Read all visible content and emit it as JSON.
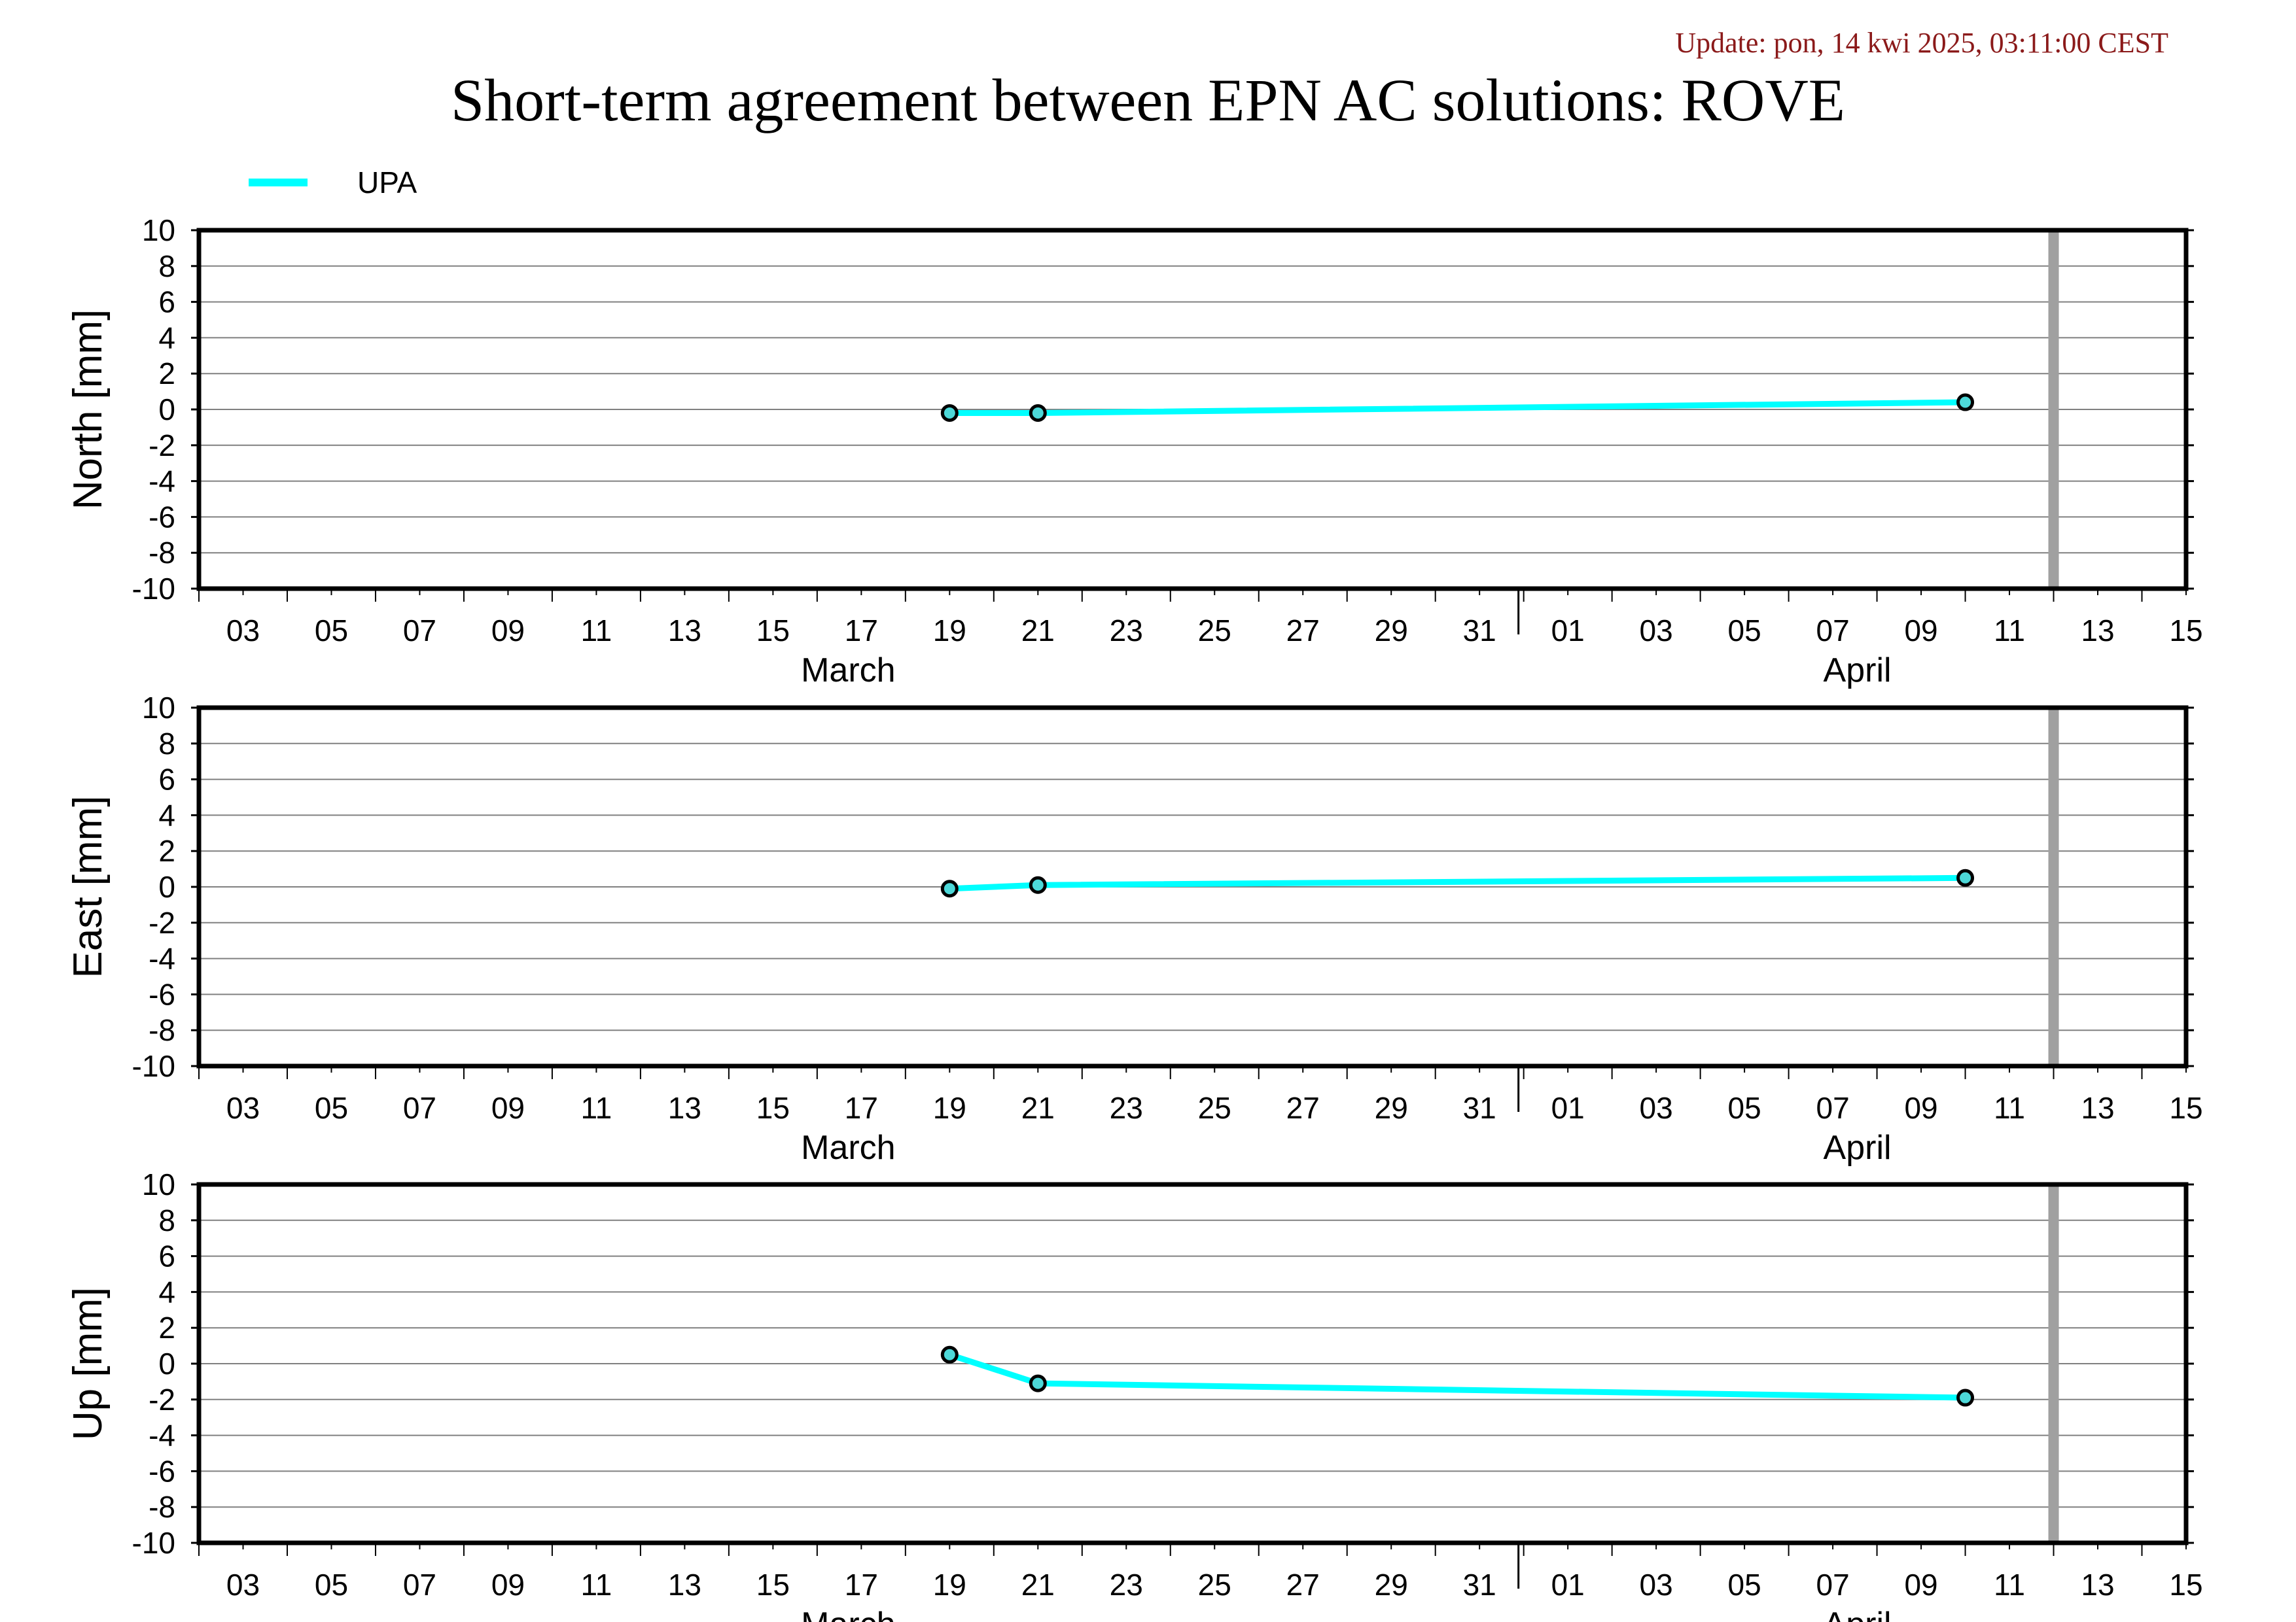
{
  "header": {
    "update": "Update: pon, 14 kwi 2025, 03:11:00 CEST",
    "title": "Short-term agreement between EPN AC solutions: ROVE"
  },
  "colors": {
    "series": "#00ffff",
    "marker_fill": "#4dd8d8",
    "update_text": "#8b1a1a",
    "today_bar": "#a0a0a0",
    "grid": "#808080"
  },
  "chart_data": [
    {
      "type": "line",
      "ylabel": "North [mm]",
      "ylim": [
        -10,
        10
      ],
      "yticks": [
        "10",
        "8",
        "6",
        "4",
        "2",
        "0",
        "-2",
        "-4",
        "-6",
        "-8",
        "-10"
      ],
      "x_day_ticks": [
        "03",
        "05",
        "07",
        "09",
        "11",
        "13",
        "15",
        "17",
        "19",
        "21",
        "23",
        "25",
        "27",
        "29",
        "31",
        "01",
        "03",
        "05",
        "07",
        "09",
        "11",
        "13",
        "15"
      ],
      "x_months": [
        "March",
        "April"
      ],
      "xlim": [
        "2025-03-02",
        "2025-04-16"
      ],
      "today_line": "2025-04-13",
      "legend": [
        "UPA"
      ],
      "series": [
        {
          "name": "UPA",
          "x": [
            "2025-03-19",
            "2025-03-21",
            "2025-04-11"
          ],
          "values": [
            -0.2,
            -0.2,
            0.4
          ]
        }
      ],
      "grid": true
    },
    {
      "type": "line",
      "ylabel": "East [mm]",
      "ylim": [
        -10,
        10
      ],
      "yticks": [
        "10",
        "8",
        "6",
        "4",
        "2",
        "0",
        "-2",
        "-4",
        "-6",
        "-8",
        "-10"
      ],
      "x_day_ticks": [
        "03",
        "05",
        "07",
        "09",
        "11",
        "13",
        "15",
        "17",
        "19",
        "21",
        "23",
        "25",
        "27",
        "29",
        "31",
        "01",
        "03",
        "05",
        "07",
        "09",
        "11",
        "13",
        "15"
      ],
      "x_months": [
        "March",
        "April"
      ],
      "xlim": [
        "2025-03-02",
        "2025-04-16"
      ],
      "today_line": "2025-04-13",
      "series": [
        {
          "name": "UPA",
          "x": [
            "2025-03-19",
            "2025-03-21",
            "2025-04-11"
          ],
          "values": [
            -0.1,
            0.1,
            0.5
          ]
        }
      ],
      "grid": true
    },
    {
      "type": "line",
      "ylabel": "Up [mm]",
      "ylim": [
        -10,
        10
      ],
      "yticks": [
        "10",
        "8",
        "6",
        "4",
        "2",
        "0",
        "-2",
        "-4",
        "-6",
        "-8",
        "-10"
      ],
      "x_day_ticks": [
        "03",
        "05",
        "07",
        "09",
        "11",
        "13",
        "15",
        "17",
        "19",
        "21",
        "23",
        "25",
        "27",
        "29",
        "31",
        "01",
        "03",
        "05",
        "07",
        "09",
        "11",
        "13",
        "15"
      ],
      "x_months": [
        "March",
        "April"
      ],
      "xlim": [
        "2025-03-02",
        "2025-04-16"
      ],
      "today_line": "2025-04-13",
      "series": [
        {
          "name": "UPA",
          "x": [
            "2025-03-19",
            "2025-03-21",
            "2025-04-11"
          ],
          "values": [
            0.5,
            -1.1,
            -1.9
          ]
        }
      ],
      "grid": true
    }
  ]
}
